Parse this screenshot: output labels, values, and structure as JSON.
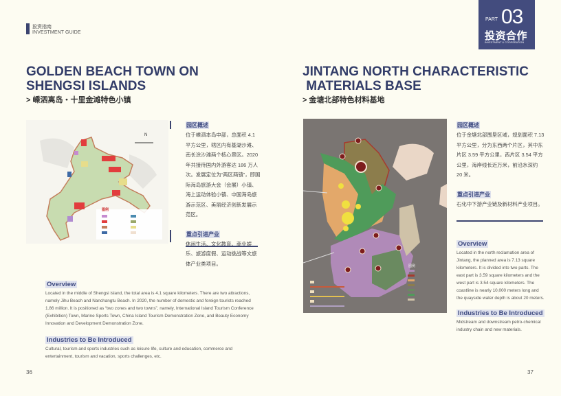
{
  "header": {
    "guide_cn": "投资指南",
    "guide_en": "INVESTMENT GUIDE"
  },
  "part": {
    "label": "PART",
    "number": "03",
    "title_cn": "投资合作",
    "title_en": "INVESTMENT & COOPERATION",
    "color": "#434c7e"
  },
  "left": {
    "title_line1": "GOLDEN BEACH TOWN ON",
    "title_line2": "SHENGSI ISLANDS",
    "subtitle": "> 嵊泗离岛・十里金滩特色小镇",
    "map_legend_title": "图例",
    "cn_overview_heading": "园区概述",
    "cn_overview_text": "位于嵊泗本岛中部，总面积 4.1 平方公里，辖区内有基湖沙滩、南长涂沙滩两个核心景区。2020 年共接待国内外游客达 186 万人次。发展定位为“两区两镇”，即国际海岛旅游大会（会展）小镇、海上运动体验小镇、中国海岛旅游示范区、美丽经济创新发展示范区。",
    "cn_industry_heading": "重点引进产业",
    "cn_industry_text": "休闲生活、文化教育、商业娱乐、旅游度假、运动挑战等文旅体产业类项目。",
    "overview_heading": "Overview",
    "overview_text": "Located in the middle of Shengsi island, the total area is 4.1 square kilometers. There are two attractions, namely Jihu Beach and Nanchangtu Beach. In 2020, the number of domestic and foreign tourists reached 1.86 million. It is positioned as “two zones and two towns”, namely, International Island Tourism Conference (Exhibition) Town, Marine Sports Town, China Island Tourism Demonstration Zone, and Beauty Economy Innovation and Development Demonstration Zone.",
    "industry_heading": "Industries to Be Introduced",
    "industry_text": "Cultural, tourism and sports industries such as leisure life, culture and education, commerce and entertainment, tourism and vacation, sports challenges, etc.",
    "page_number": "36"
  },
  "right": {
    "title_line1": "JINTANG NORTH CHARACTERISTIC",
    "title_line2": " MATERIALS BASE",
    "subtitle": "> 金塘北部特色材料基地",
    "map_legend_title": "图例",
    "cn_overview_heading": "园区概述",
    "cn_overview_text": "位于金塘北部围垦区域，规划面积 7.13 平方公里，分为东西两个片区，其中东片区 3.59 平方公里，西片区 3.54 平方公里，海岸线长近万米，前沿水深约 20 米。",
    "cn_industry_heading": "重点引进产业",
    "cn_industry_text": "石化中下游产业链及新材料产业项目。",
    "overview_heading": "Overview",
    "overview_text": "Located in the north reclamation area of Jintang, the planned area is 7.13 square kilometers. It is divided into two parts. The east part is 3.59 square kilometers and the west part is 3.54 square kilometers. The coastline is nearly 10,000 meters long and the quayside water depth is about 20 meters.",
    "industry_heading": "Industries to Be Introduced",
    "industry_text": "Midstream and downstream petro-chemical industry chain and new materials.",
    "page_number": "37"
  }
}
